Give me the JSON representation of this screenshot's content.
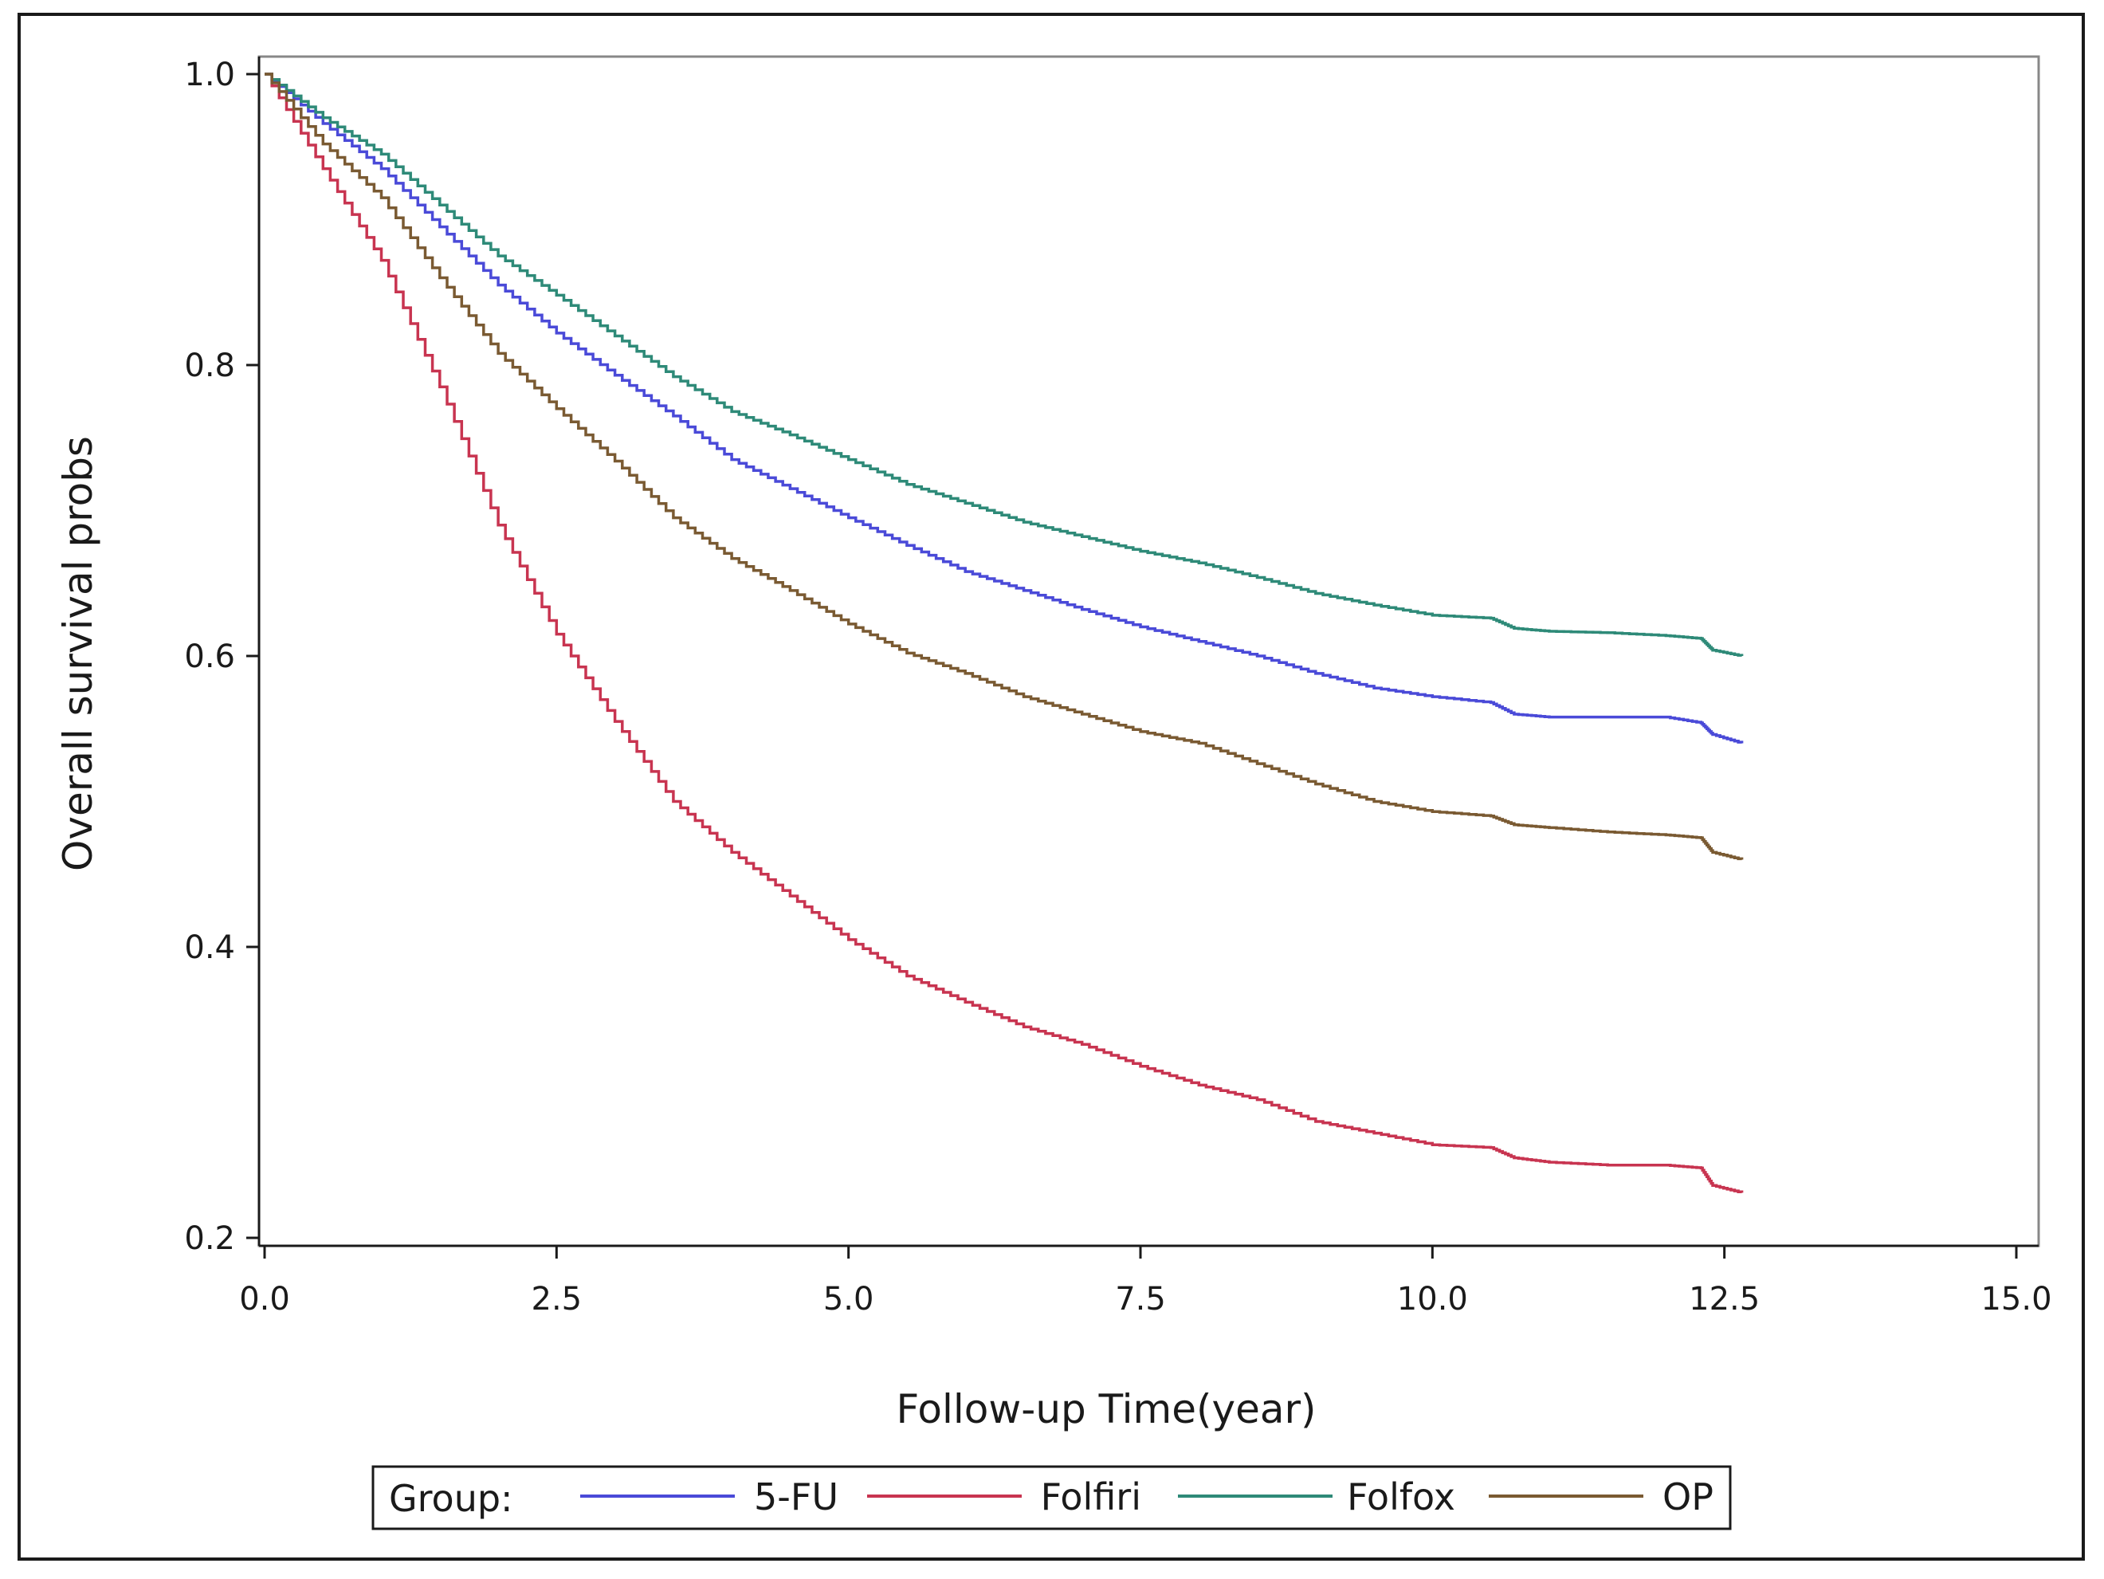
{
  "chart_data": {
    "type": "line",
    "title": "",
    "xlabel": "Follow-up Time(year)",
    "ylabel": "Overall survival probs",
    "xlim": [
      0,
      15
    ],
    "ylim": [
      0.2,
      1.0
    ],
    "x_ticks": [
      "0.0",
      "2.5",
      "5.0",
      "7.5",
      "10.0",
      "12.5",
      "15.0"
    ],
    "y_ticks": [
      "0.2",
      "0.4",
      "0.6",
      "0.8",
      "1.0"
    ],
    "grid": false,
    "legend": {
      "title": "Group:",
      "placement": "bottom"
    },
    "series": [
      {
        "name": "5-FU",
        "color": "#4a4ad8",
        "x": [
          0,
          0.5,
          1.0,
          1.5,
          2.0,
          2.5,
          3.0,
          3.5,
          4.0,
          4.5,
          5.0,
          5.5,
          6.0,
          6.5,
          7.0,
          7.5,
          8.0,
          8.5,
          9.0,
          9.5,
          10.0,
          10.5,
          10.7,
          11.0,
          11.5,
          12.0,
          12.3,
          12.4,
          12.65
        ],
        "y": [
          1.0,
          0.966,
          0.935,
          0.895,
          0.855,
          0.822,
          0.793,
          0.765,
          0.735,
          0.715,
          0.695,
          0.676,
          0.658,
          0.645,
          0.632,
          0.62,
          0.61,
          0.6,
          0.588,
          0.578,
          0.572,
          0.568,
          0.56,
          0.558,
          0.558,
          0.558,
          0.554,
          0.546,
          0.54
        ]
      },
      {
        "name": "Folfiri",
        "color": "#c83450",
        "x": [
          0,
          0.5,
          1.0,
          1.5,
          2.0,
          2.5,
          3.0,
          3.5,
          4.0,
          4.5,
          5.0,
          5.5,
          6.0,
          6.5,
          7.0,
          7.5,
          8.0,
          8.5,
          9.0,
          9.5,
          10.0,
          10.5,
          10.7,
          11.0,
          11.5,
          12.0,
          12.3,
          12.4,
          12.65
        ],
        "y": [
          1.0,
          0.935,
          0.872,
          0.785,
          0.69,
          0.615,
          0.555,
          0.5,
          0.465,
          0.435,
          0.405,
          0.38,
          0.362,
          0.345,
          0.333,
          0.318,
          0.305,
          0.295,
          0.28,
          0.272,
          0.264,
          0.262,
          0.255,
          0.252,
          0.25,
          0.25,
          0.248,
          0.236,
          0.231
        ]
      },
      {
        "name": "Folfox",
        "color": "#2e8a78",
        "x": [
          0,
          0.5,
          1.0,
          1.5,
          2.0,
          2.5,
          3.0,
          3.5,
          4.0,
          4.5,
          5.0,
          5.5,
          6.0,
          6.5,
          7.0,
          7.5,
          8.0,
          8.5,
          9.0,
          9.5,
          10.0,
          10.5,
          10.7,
          11.0,
          11.5,
          12.0,
          12.3,
          12.4,
          12.65
        ],
        "y": [
          1.0,
          0.97,
          0.945,
          0.91,
          0.875,
          0.848,
          0.82,
          0.792,
          0.768,
          0.752,
          0.735,
          0.718,
          0.705,
          0.692,
          0.682,
          0.672,
          0.664,
          0.654,
          0.643,
          0.635,
          0.628,
          0.626,
          0.619,
          0.617,
          0.616,
          0.614,
          0.612,
          0.604,
          0.6
        ]
      },
      {
        "name": "OP",
        "color": "#7a5a32",
        "x": [
          0,
          0.5,
          1.0,
          1.5,
          2.0,
          2.5,
          3.0,
          3.5,
          4.0,
          4.5,
          5.0,
          5.5,
          6.0,
          6.5,
          7.0,
          7.5,
          8.0,
          8.5,
          9.0,
          9.5,
          10.0,
          10.5,
          10.7,
          11.0,
          11.5,
          12.0,
          12.3,
          12.4,
          12.65
        ],
        "y": [
          1.0,
          0.952,
          0.915,
          0.86,
          0.808,
          0.77,
          0.734,
          0.695,
          0.667,
          0.645,
          0.622,
          0.602,
          0.588,
          0.572,
          0.56,
          0.548,
          0.54,
          0.526,
          0.512,
          0.5,
          0.493,
          0.49,
          0.484,
          0.482,
          0.479,
          0.477,
          0.475,
          0.465,
          0.46
        ]
      }
    ]
  }
}
